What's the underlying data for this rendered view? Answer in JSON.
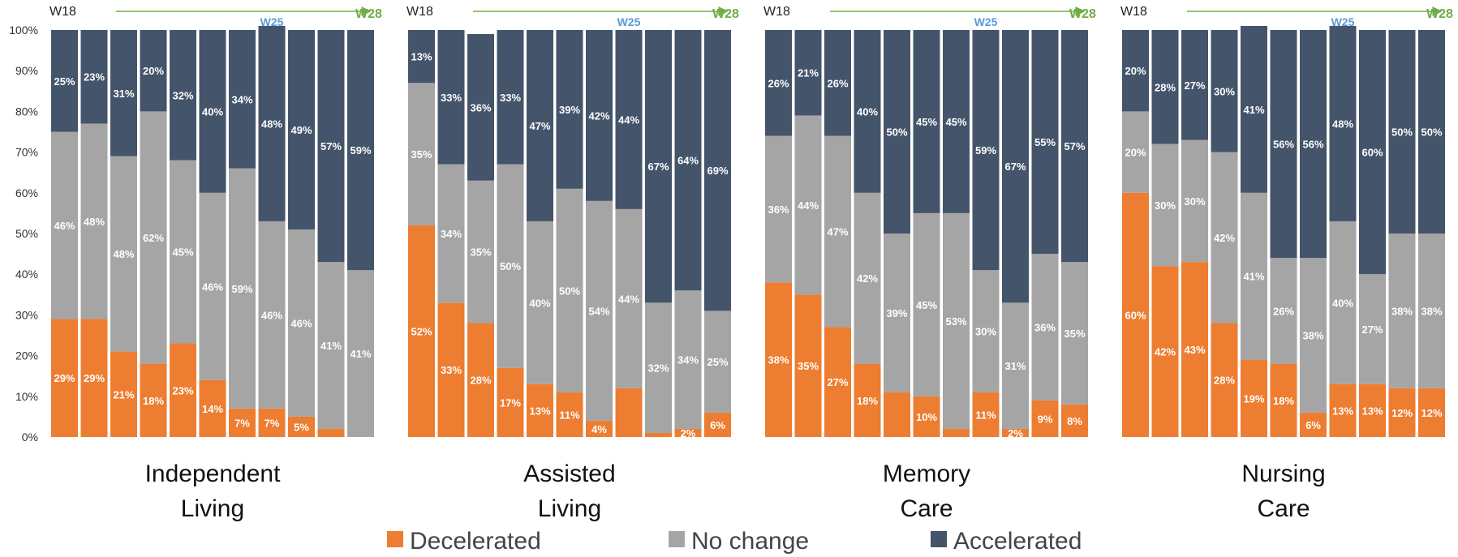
{
  "chart_data": {
    "type": "bar",
    "stacked": true,
    "percent_stacked": true,
    "y_ticks": [
      "0%",
      "10%",
      "20%",
      "30%",
      "40%",
      "50%",
      "60%",
      "70%",
      "80%",
      "90%",
      "100%"
    ],
    "ylim": [
      0,
      100
    ],
    "week_start": "W18",
    "week_mid": "W25",
    "week_end": "W28",
    "colors": {
      "Decelerated": "#ed7d31",
      "No change": "#a5a5a5",
      "Accelerated": "#44546a"
    },
    "legend": [
      "Decelerated",
      "No change",
      "Accelerated"
    ],
    "legend_position": "bottom",
    "groups": [
      {
        "name_lines": [
          "Independent",
          "Living"
        ],
        "decelerated": [
          29,
          29,
          21,
          18,
          23,
          14,
          7,
          7,
          5,
          2,
          0
        ],
        "no_change": [
          46,
          48,
          48,
          62,
          45,
          46,
          59,
          46,
          46,
          41,
          41
        ],
        "accelerated": [
          25,
          23,
          31,
          20,
          32,
          40,
          34,
          48,
          49,
          57,
          59
        ],
        "decelerated_labels": [
          "29%",
          "29%",
          "21%",
          "18%",
          "23%",
          "14%",
          "7%",
          "7%",
          "5%",
          "",
          "0%"
        ],
        "no_change_labels": [
          "46%",
          "48%",
          "48%",
          "62%",
          "45%",
          "46%",
          "59%",
          "46%",
          "46%",
          "41%",
          "41%"
        ],
        "accelerated_labels": [
          "25%",
          "23%",
          "31%",
          "20%",
          "32%",
          "40%",
          "34%",
          "48%",
          "49%",
          "57%",
          "59%"
        ]
      },
      {
        "name_lines": [
          "Assisted",
          "Living"
        ],
        "decelerated": [
          52,
          33,
          28,
          17,
          13,
          11,
          4,
          12,
          1,
          2,
          6
        ],
        "no_change": [
          35,
          34,
          35,
          50,
          40,
          50,
          54,
          44,
          32,
          34,
          25
        ],
        "accelerated": [
          13,
          33,
          36,
          33,
          47,
          39,
          42,
          44,
          67,
          64,
          69
        ],
        "decelerated_labels": [
          "52%",
          "33%",
          "28%",
          "17%",
          "13%",
          "11%",
          "4%",
          "",
          "",
          "2%",
          "6%"
        ],
        "no_change_labels": [
          "35%",
          "34%",
          "35%",
          "50%",
          "40%",
          "50%",
          "54%",
          "44%",
          "32%",
          "34%",
          "25%"
        ],
        "accelerated_labels": [
          "13%",
          "33%",
          "36%",
          "33%",
          "47%",
          "39%",
          "42%",
          "44%",
          "67%",
          "64%",
          "69%"
        ]
      },
      {
        "name_lines": [
          "Memory",
          "Care"
        ],
        "decelerated": [
          38,
          35,
          27,
          18,
          11,
          10,
          2,
          11,
          2,
          9,
          8
        ],
        "no_change": [
          36,
          44,
          47,
          42,
          39,
          45,
          53,
          30,
          31,
          36,
          35
        ],
        "accelerated": [
          26,
          21,
          26,
          40,
          50,
          45,
          45,
          59,
          67,
          55,
          57
        ],
        "decelerated_labels": [
          "38%",
          "35%",
          "27%",
          "18%",
          "",
          "10%",
          "",
          "11%",
          "2%",
          "9%",
          "8%"
        ],
        "no_change_labels": [
          "36%",
          "44%",
          "47%",
          "42%",
          "39%",
          "45%",
          "53%",
          "30%",
          "31%",
          "36%",
          "35%"
        ],
        "accelerated_labels": [
          "26%",
          "21%",
          "26%",
          "40%",
          "50%",
          "45%",
          "45%",
          "59%",
          "67%",
          "55%",
          "57%"
        ]
      },
      {
        "name_lines": [
          "Nursing",
          "Care"
        ],
        "decelerated": [
          60,
          42,
          43,
          28,
          19,
          18,
          6,
          13,
          13,
          12,
          12
        ],
        "no_change": [
          20,
          30,
          30,
          42,
          41,
          26,
          38,
          40,
          27,
          38,
          38
        ],
        "accelerated": [
          20,
          28,
          27,
          30,
          41,
          56,
          56,
          48,
          60,
          50,
          50
        ],
        "decelerated_labels": [
          "60%",
          "42%",
          "43%",
          "28%",
          "19%",
          "18%",
          "6%",
          "13%",
          "13%",
          "12%",
          "12%"
        ],
        "no_change_labels": [
          "20%",
          "30%",
          "30%",
          "42%",
          "41%",
          "26%",
          "38%",
          "40%",
          "27%",
          "38%",
          "38%"
        ],
        "accelerated_labels": [
          "20%",
          "28%",
          "27%",
          "30%",
          "41%",
          "56%",
          "56%",
          "48%",
          "60%",
          "50%",
          "50%"
        ]
      }
    ]
  }
}
